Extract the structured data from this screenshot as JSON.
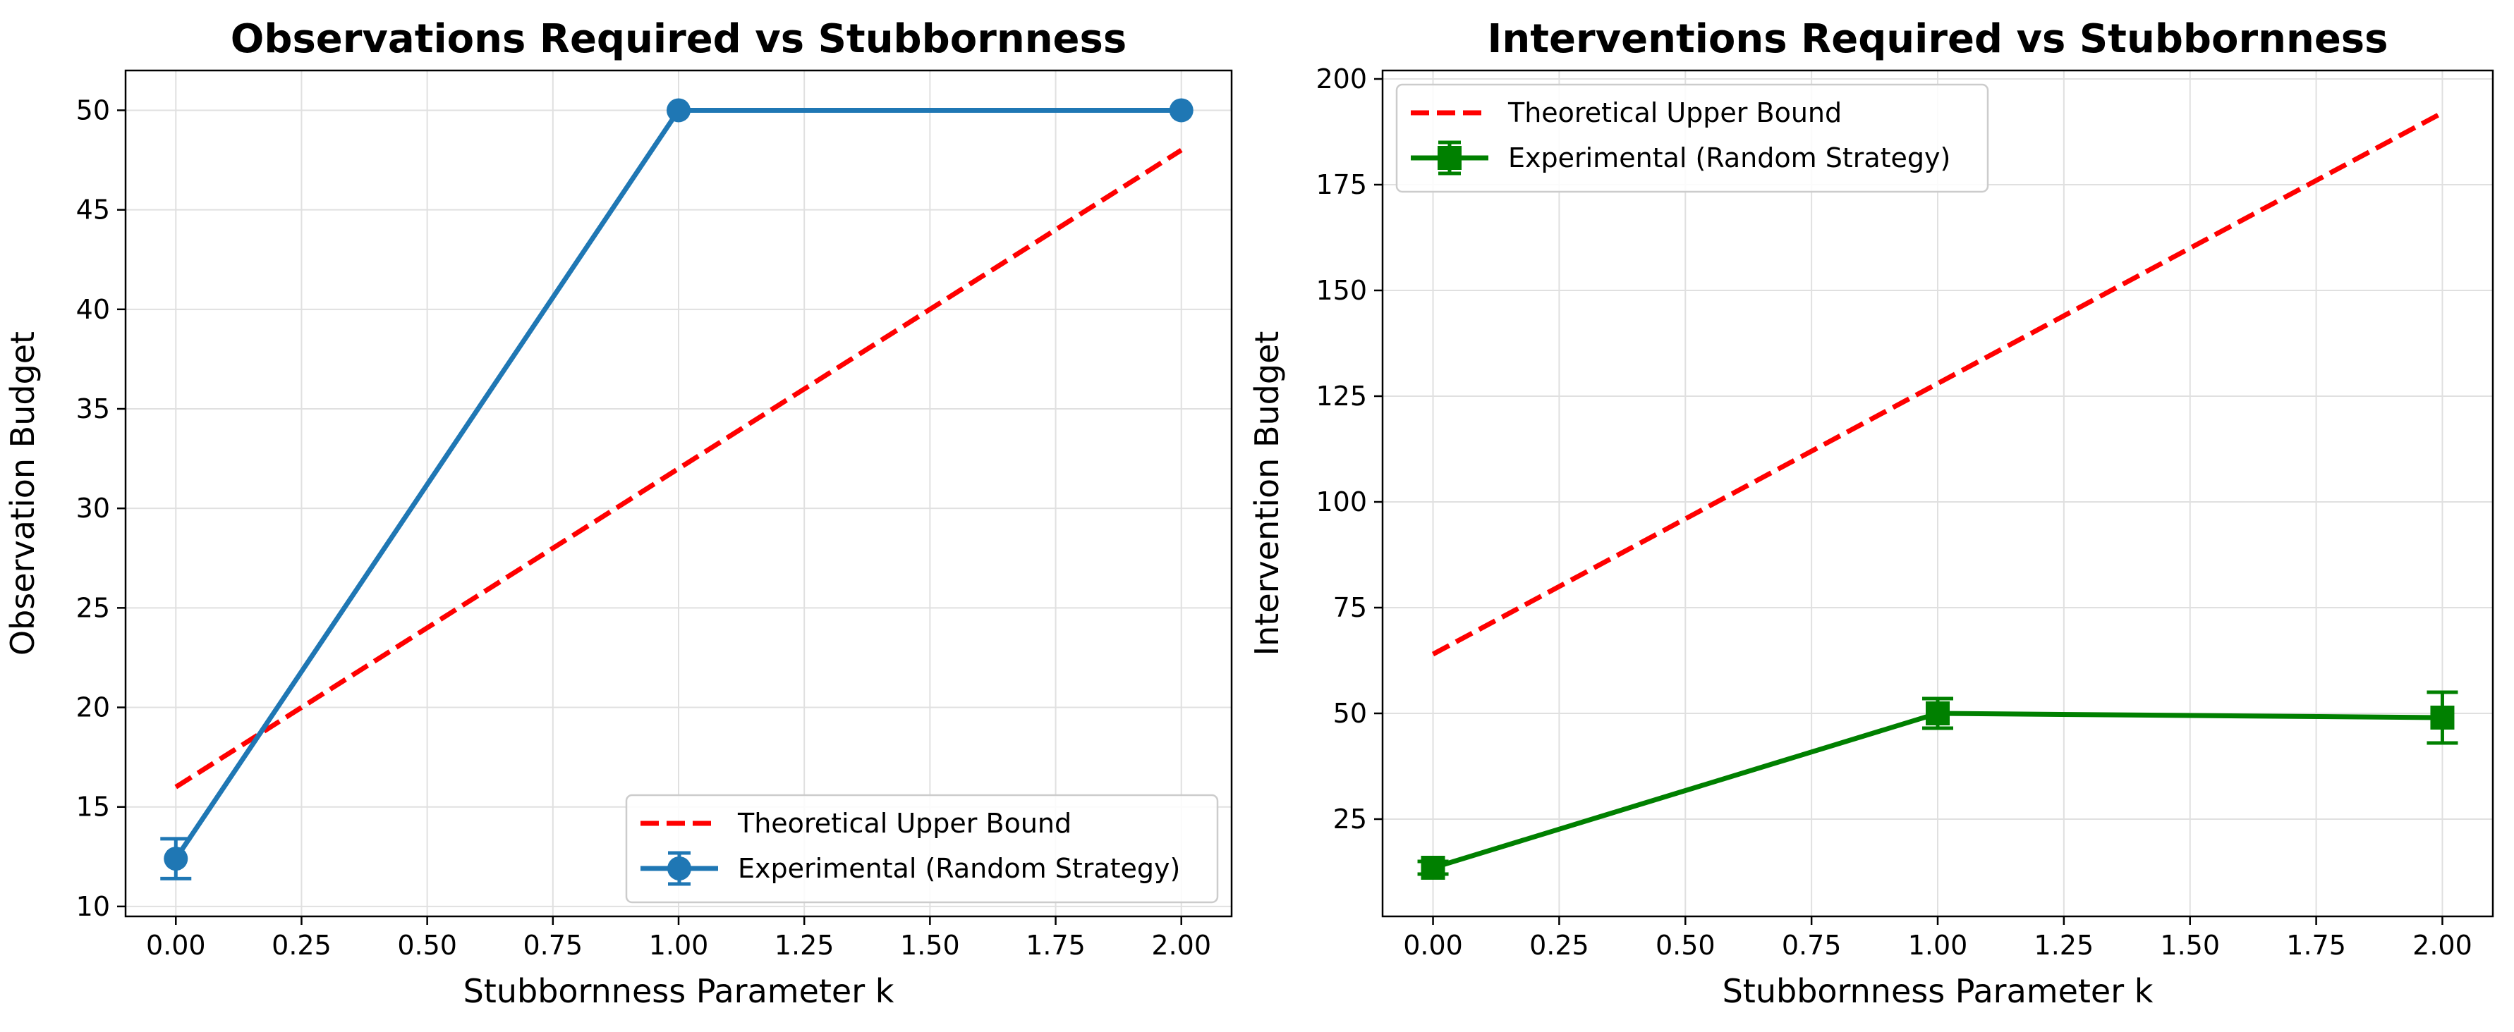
{
  "chart_data": [
    {
      "type": "line",
      "title": "Observations Required vs Stubbornness",
      "xlabel": "Stubbornness Parameter k",
      "ylabel": "Observation Budget",
      "xlim": [
        -0.1,
        2.1
      ],
      "ylim": [
        9.5,
        52
      ],
      "xticks": [
        0.0,
        0.25,
        0.5,
        0.75,
        1.0,
        1.25,
        1.5,
        1.75,
        2.0
      ],
      "xtick_labels": [
        "0.00",
        "0.25",
        "0.50",
        "0.75",
        "1.00",
        "1.25",
        "1.50",
        "1.75",
        "2.00"
      ],
      "yticks": [
        10,
        15,
        20,
        25,
        30,
        35,
        40,
        45,
        50
      ],
      "ytick_labels": [
        "10",
        "15",
        "20",
        "25",
        "30",
        "35",
        "40",
        "45",
        "50"
      ],
      "grid": true,
      "legend_position": "lower-right",
      "series": [
        {
          "name": "Theoretical Upper Bound",
          "style": "dashed",
          "color": "#ff0000",
          "x": [
            0,
            2
          ],
          "y": [
            16,
            48
          ]
        },
        {
          "name": "Experimental (Random Strategy)",
          "style": "solid",
          "marker": "circle",
          "color": "#1f77b4",
          "x": [
            0,
            1,
            2
          ],
          "y": [
            12.4,
            50,
            50
          ],
          "yerr": [
            1.0,
            0,
            0
          ]
        }
      ]
    },
    {
      "type": "line",
      "title": "Interventions Required vs Stubbornness",
      "xlabel": "Stubbornness Parameter k",
      "ylabel": "Intervention Budget",
      "xlim": [
        -0.1,
        2.1
      ],
      "ylim": [
        2,
        202
      ],
      "xticks": [
        0.0,
        0.25,
        0.5,
        0.75,
        1.0,
        1.25,
        1.5,
        1.75,
        2.0
      ],
      "xtick_labels": [
        "0.00",
        "0.25",
        "0.50",
        "0.75",
        "1.00",
        "1.25",
        "1.50",
        "1.75",
        "2.00"
      ],
      "yticks": [
        25,
        50,
        75,
        100,
        125,
        150,
        175,
        200
      ],
      "ytick_labels": [
        "25",
        "50",
        "75",
        "100",
        "125",
        "150",
        "175",
        "200"
      ],
      "grid": true,
      "legend_position": "upper-left",
      "series": [
        {
          "name": "Theoretical Upper Bound",
          "style": "dashed",
          "color": "#ff0000",
          "x": [
            0,
            2
          ],
          "y": [
            64,
            192
          ]
        },
        {
          "name": "Experimental (Random Strategy)",
          "style": "solid",
          "marker": "square",
          "color": "#008000",
          "x": [
            0,
            1,
            2
          ],
          "y": [
            13.5,
            50,
            49
          ],
          "yerr": [
            1.5,
            3.5,
            6
          ]
        }
      ]
    }
  ]
}
